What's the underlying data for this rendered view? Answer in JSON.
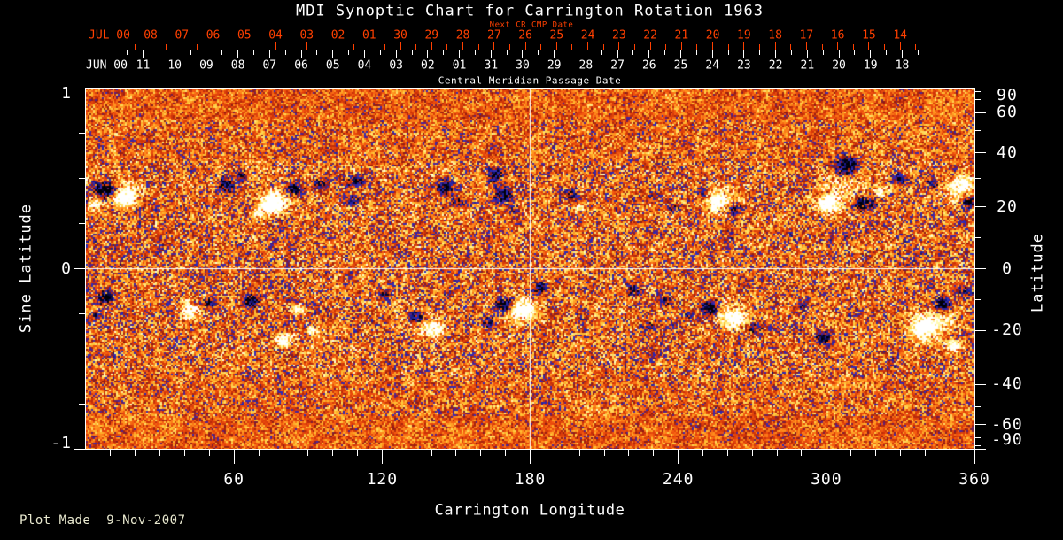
{
  "page": {
    "background": "#000000",
    "footer": "Plot Made  9-Nov-2007",
    "footer_color": "#e9e9cf"
  },
  "chart_data": {
    "type": "heatmap",
    "title": "MDI Synoptic Chart for Carrington Rotation 1963",
    "description": "Solar photospheric magnetic field synoptic map for Carrington rotation 1963. Mottled orange/red background is the quiet Sun; white/yellow patches are positive magnetic polarity; black patches with blue fringes are negative polarity. White crosshair lines mark Carrington longitude 180 and sine latitude 0.",
    "top_axis_next_cr": {
      "label": "Next CR CMP Date",
      "month_label": "JUL 00",
      "color": "#ff4000",
      "dates": [
        "08",
        "07",
        "06",
        "05",
        "04",
        "03",
        "02",
        "01",
        "30",
        "29",
        "28",
        "27",
        "26",
        "25",
        "24",
        "23",
        "22",
        "21",
        "20",
        "19",
        "18",
        "17",
        "16",
        "15",
        "14"
      ],
      "first_frac": 0.0728,
      "step_frac": 0.03515
    },
    "top_axis_cmp": {
      "label": "Central Meridian Passage Date",
      "month_label": "JUN 00",
      "color": "#ffffff",
      "dates": [
        "11",
        "10",
        "09",
        "08",
        "07",
        "06",
        "05",
        "04",
        "03",
        "02",
        "01",
        "31",
        "30",
        "29",
        "28",
        "27",
        "26",
        "25",
        "24",
        "23",
        "22",
        "21",
        "20",
        "19",
        "18"
      ],
      "first_frac": 0.0643,
      "step_frac": 0.0356
    },
    "x_axis": {
      "label": "Carrington Longitude",
      "range": [
        0,
        360
      ],
      "labeled_ticks": [
        60,
        120,
        180,
        240,
        300,
        360
      ],
      "minor_tick_step": 10
    },
    "y_axis_left": {
      "label": "Sine Latitude",
      "range": [
        1,
        -1
      ],
      "labeled_ticks": [
        1,
        0,
        -1
      ],
      "minor_tick_step": 0.25
    },
    "y_axis_right": {
      "label": "Latitude",
      "labeled_ticks": [
        90,
        60,
        40,
        20,
        0,
        -20,
        -40,
        -60,
        -90
      ],
      "minor_tick_step": 10
    },
    "grid": {
      "longitude_line": 180,
      "sine_latitude_line": 0,
      "color": "#ffffff"
    },
    "colormap": {
      "stops": [
        [
          -1,
          "#000004"
        ],
        [
          -0.7,
          "#04042c"
        ],
        [
          -0.5,
          "#1c1c8e"
        ],
        [
          -0.3,
          "#2e2ec0"
        ],
        [
          -0.2,
          "#55208a"
        ],
        [
          -0.12,
          "#8c1a14"
        ],
        [
          0,
          "#c93008"
        ],
        [
          0.18,
          "#f0500e"
        ],
        [
          0.35,
          "#ff8c1c"
        ],
        [
          0.52,
          "#ffc838"
        ],
        [
          0.68,
          "#ffe878"
        ],
        [
          0.85,
          "#ffffc0"
        ],
        [
          1,
          "#ffffff"
        ]
      ]
    },
    "noise": {
      "seed": 1963,
      "base": 0.2,
      "hf_amplitude_mid": 0.72,
      "hf_amplitude_polar": 0.45,
      "lf_amplitude": 0.3
    },
    "active_regions_format": [
      "carrington_longitude_deg",
      "sine_latitude",
      "amplitude",
      "radius_px"
    ],
    "active_regions": [
      [
        8,
        0.44,
        -1.7,
        13
      ],
      [
        16,
        0.4,
        1.5,
        11
      ],
      [
        3,
        0.36,
        0.9,
        9
      ],
      [
        13,
        0.43,
        0.5,
        24
      ],
      [
        57,
        0.46,
        -1.0,
        10
      ],
      [
        63,
        0.51,
        -0.8,
        7
      ],
      [
        76,
        0.36,
        1.6,
        12
      ],
      [
        84,
        0.44,
        -1.3,
        9
      ],
      [
        70,
        0.3,
        0.8,
        8
      ],
      [
        78,
        0.4,
        0.4,
        22
      ],
      [
        95,
        0.47,
        -0.9,
        7
      ],
      [
        110,
        0.49,
        -1.0,
        8
      ],
      [
        108,
        0.38,
        -0.7,
        6
      ],
      [
        145,
        0.45,
        -1.1,
        9
      ],
      [
        151,
        0.37,
        -0.8,
        7
      ],
      [
        166,
        0.52,
        -1.0,
        8
      ],
      [
        169,
        0.41,
        -1.2,
        9
      ],
      [
        173,
        0.33,
        -0.8,
        6
      ],
      [
        197,
        0.41,
        -0.9,
        7
      ],
      [
        200,
        0.34,
        0.7,
        6
      ],
      [
        230,
        0.4,
        -0.7,
        6
      ],
      [
        238,
        0.34,
        -0.6,
        5
      ],
      [
        256,
        0.37,
        1.4,
        10
      ],
      [
        263,
        0.33,
        -1.1,
        8
      ],
      [
        250,
        0.42,
        -0.8,
        6
      ],
      [
        258,
        0.37,
        0.45,
        20
      ],
      [
        308,
        0.57,
        -1.6,
        12
      ],
      [
        301,
        0.36,
        1.7,
        11
      ],
      [
        315,
        0.36,
        -1.5,
        10
      ],
      [
        322,
        0.43,
        0.9,
        7
      ],
      [
        308,
        0.45,
        0.5,
        26
      ],
      [
        329,
        0.5,
        -0.9,
        7
      ],
      [
        343,
        0.47,
        -0.8,
        6
      ],
      [
        355,
        0.47,
        1.5,
        10
      ],
      [
        358,
        0.37,
        -1.3,
        8
      ],
      [
        353,
        0.42,
        0.5,
        16
      ],
      [
        8,
        -0.16,
        -1.3,
        9
      ],
      [
        4,
        -0.26,
        -0.7,
        6
      ],
      [
        42,
        -0.23,
        1.3,
        9
      ],
      [
        50,
        -0.19,
        -1.0,
        7
      ],
      [
        67,
        -0.18,
        -1.2,
        9
      ],
      [
        80,
        -0.4,
        1.3,
        9
      ],
      [
        86,
        -0.23,
        0.9,
        7
      ],
      [
        92,
        -0.35,
        0.8,
        7
      ],
      [
        121,
        -0.15,
        -0.7,
        6
      ],
      [
        134,
        -0.27,
        -1.3,
        9
      ],
      [
        141,
        -0.34,
        1.4,
        9
      ],
      [
        137,
        -0.3,
        0.5,
        18
      ],
      [
        163,
        -0.3,
        -0.8,
        7
      ],
      [
        170,
        -0.2,
        -1.7,
        10
      ],
      [
        177,
        -0.23,
        1.7,
        11
      ],
      [
        173,
        -0.22,
        0.5,
        20
      ],
      [
        184,
        -0.1,
        -0.9,
        7
      ],
      [
        222,
        -0.12,
        -0.8,
        8
      ],
      [
        235,
        -0.18,
        -0.7,
        7
      ],
      [
        244,
        -0.26,
        -0.6,
        6
      ],
      [
        228,
        -0.32,
        -0.5,
        7
      ],
      [
        253,
        -0.22,
        -1.5,
        10
      ],
      [
        263,
        -0.28,
        1.5,
        10
      ],
      [
        271,
        -0.33,
        -0.9,
        7
      ],
      [
        258,
        -0.25,
        0.5,
        20
      ],
      [
        290,
        -0.2,
        -0.6,
        6
      ],
      [
        299,
        -0.38,
        -1.1,
        8
      ],
      [
        339,
        -0.33,
        1.7,
        12
      ],
      [
        347,
        -0.2,
        -1.5,
        10
      ],
      [
        352,
        -0.43,
        1.1,
        8
      ],
      [
        357,
        -0.13,
        -0.9,
        7
      ],
      [
        344,
        -0.3,
        0.6,
        24
      ]
    ]
  }
}
